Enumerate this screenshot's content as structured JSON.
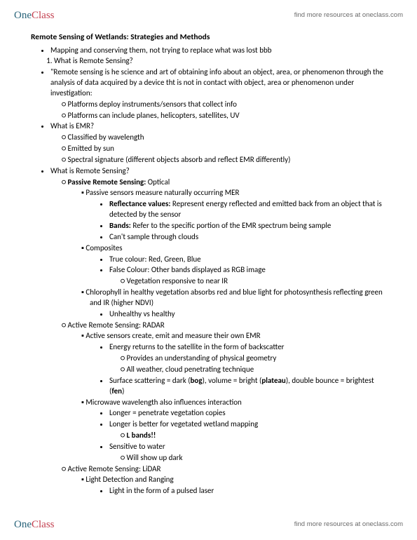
{
  "brand": {
    "part1": "One",
    "part2": "Class",
    "cta": "find more resources at oneclass.com"
  },
  "doc": {
    "title": "Remote Sensing of Wetlands: Strategies and Methods",
    "b1": "Mapping and conserving them, not trying to replace what was lost bbb",
    "n1": "What is Remote Sensing?",
    "b2a": "\"Remote sensing is he science and art of obtaining info about an object, area, or phenomenon through the analysis of data acquired by a device tht is not in contact with object, area or phenomenon under investigation:",
    "b2a_o1": "Platforms deploy instruments/sensors that collect info",
    "b2a_o2": "Platforms can include planes, helicopters, satellites, UV",
    "b3": "What is EMR?",
    "b3_o1": "Classified by wavelength",
    "b3_o2": "Emitted by sun",
    "b3_o3": "Spectral signature (different objects absorb and reflect EMR differently)",
    "b4": "What is Remote Sensing?",
    "b4_o1_pre": "Passive Remote Sensing:",
    "b4_o1_suf": " Optical",
    "b4_o1_s1": "Passive sensors measure naturally occurring MER",
    "b4_o1_s1_a_pre": "Reflectance values:",
    "b4_o1_s1_a_suf": " Represent energy reflected and emitted back from an object that is detected by the sensor",
    "b4_o1_s1_b_pre": "Bands:",
    "b4_o1_s1_b_suf": " Refer to the specific portion of the EMR spectrum being sample",
    "b4_o1_s1_c": "Can't sample through clouds",
    "b4_o1_s2": "Composites",
    "b4_o1_s2_a": "True colour: Red, Green, Blue",
    "b4_o1_s2_b": "False Colour: Other bands displayed as RGB image",
    "b4_o1_s2_b_i": "Vegetation responsive to near IR",
    "b4_o1_s3": "Chlorophyll in healthy vegetation absorbs red and blue light for photosynthesis reflecting green and IR (higher NDVI)",
    "b4_o1_s3_a": "Unhealthy vs healthy",
    "b4_o2": "Active Remote Sensing: RADAR",
    "b4_o2_s1": "Active sensors create, emit and measure their own EMR",
    "b4_o2_s1_a": "Energy returns to the satellite in the form of backscatter",
    "b4_o2_s1_a_i": "Provides an understanding of physical geometry",
    "b4_o2_s1_a_ii": "All weather, cloud penetrating technique",
    "b4_o2_s1_b_pre": "Surface scattering = dark (",
    "b4_o2_s1_b_bog": "bog",
    "b4_o2_s1_b_mid": "), volume = bright (",
    "b4_o2_s1_b_plat": "plateau",
    "b4_o2_s1_b_mid2": "), double bounce = brightest (",
    "b4_o2_s1_b_fen": "fen",
    "b4_o2_s1_b_suf": ")",
    "b4_o2_s2": "Microwave wavelength also influences interaction",
    "b4_o2_s2_a": "Longer = penetrate vegetation copies",
    "b4_o2_s2_b": "Longer is better for vegetated wetland mapping",
    "b4_o2_s2_b_i": "L bands!!",
    "b4_o2_s2_c": "Sensitive to water",
    "b4_o2_s2_c_i": "Will show up dark",
    "b4_o3": "Active Remote Sensing: LiDAR",
    "b4_o3_s1": "Light Detection and Ranging",
    "b4_o3_s1_a": "Light in the form of a pulsed laser"
  }
}
